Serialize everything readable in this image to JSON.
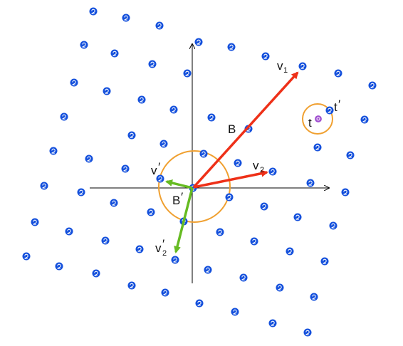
{
  "colors": {
    "lattice_point": "#1450dc",
    "basis_long": "#ee3018",
    "basis_reduced": "#66bb22",
    "circle": "#f0a030",
    "target": "#a050d0",
    "axis": "#000000"
  },
  "labels": {
    "B": "B",
    "B_prime": "B",
    "B_prime_mark": "′",
    "v1": "v",
    "v1_sub": "1",
    "v2": "v",
    "v2_sub": "2",
    "v1_prime": "v",
    "v1_prime_mark": "′",
    "v2_prime": "v",
    "v2_prime_mark": "′",
    "v2_prime_sub": "2",
    "t": "t",
    "t_prime": "t",
    "t_prime_mark": "′"
  },
  "icons": {
    "lattice_point": "lattice-point-icon",
    "target_point": "target-point-icon"
  }
}
